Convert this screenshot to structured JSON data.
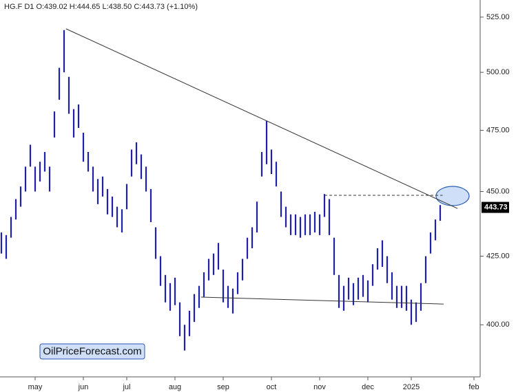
{
  "chart_data": {
    "type": "hlbar",
    "title": "HG.F  D1  O:439.02  H:444.65  L:438.50  C:443.73  (+1.10%)",
    "watermark": "OilPriceForecast.com",
    "color": "#1f1fa8",
    "log_scale": true,
    "ylim": [
      382,
      533
    ],
    "yticks": [
      {
        "value": 400,
        "label": "400.00"
      },
      {
        "value": 425,
        "label": "425.00"
      },
      {
        "value": 450,
        "label": "450.00"
      },
      {
        "value": 475,
        "label": "475.00"
      },
      {
        "value": 500,
        "label": "500.00"
      },
      {
        "value": 525,
        "label": "525.00"
      }
    ],
    "categories": [
      null,
      null,
      null,
      null,
      null,
      null,
      null,
      "may",
      null,
      null,
      null,
      null,
      null,
      null,
      null,
      null,
      null,
      "jun",
      null,
      null,
      null,
      null,
      null,
      null,
      null,
      null,
      "jul",
      null,
      null,
      null,
      null,
      null,
      null,
      null,
      null,
      null,
      "aug",
      null,
      null,
      null,
      null,
      null,
      null,
      null,
      null,
      null,
      "sep",
      null,
      null,
      null,
      null,
      null,
      null,
      null,
      null,
      null,
      "oct",
      null,
      null,
      null,
      null,
      null,
      null,
      null,
      null,
      null,
      "nov",
      null,
      null,
      null,
      null,
      null,
      null,
      null,
      null,
      null,
      "dec",
      null,
      null,
      null,
      null,
      null,
      null,
      null,
      null,
      "2025",
      null,
      null,
      null,
      null,
      null,
      null,
      null,
      null,
      null,
      null,
      null,
      null,
      "feb"
    ],
    "high": [
      434,
      433,
      440,
      447,
      452,
      460,
      469,
      460,
      462,
      466,
      460,
      483,
      502,
      519,
      498,
      484,
      486,
      474,
      466,
      460,
      455,
      456,
      451,
      448,
      444,
      443,
      453,
      467,
      470,
      465,
      460,
      451,
      436,
      425,
      418,
      415,
      417,
      408,
      400,
      405,
      411,
      414,
      419,
      424,
      426,
      430,
      420,
      414,
      413,
      419,
      424,
      432,
      436,
      446,
      466,
      479,
      467,
      462,
      450,
      444,
      441,
      441,
      440,
      441,
      441,
      442,
      441,
      449,
      447,
      432,
      418,
      414,
      417,
      415,
      417,
      418,
      416,
      422,
      428,
      431,
      425,
      419,
      414,
      414,
      414,
      409,
      408,
      415,
      425,
      434,
      439,
      444.65,
      null,
      null,
      null,
      null,
      null,
      null,
      null
    ],
    "low": [
      426,
      424,
      432,
      439,
      444,
      450,
      460,
      450,
      454,
      458,
      450,
      472,
      488,
      500,
      482,
      472,
      476,
      462,
      458,
      450,
      445,
      448,
      441,
      440,
      436,
      434,
      443,
      456,
      461,
      455,
      450,
      438,
      424,
      414,
      408,
      405,
      407,
      396,
      391,
      396,
      401,
      406,
      410,
      416,
      418,
      420,
      408,
      406,
      404,
      411,
      416,
      424,
      428,
      434,
      456,
      461,
      457,
      452,
      440,
      436,
      433,
      433,
      432,
      433,
      433,
      434,
      433,
      440,
      433,
      418,
      406,
      405,
      409,
      407,
      409,
      410,
      408,
      414,
      420,
      421,
      415,
      409,
      406,
      406,
      405,
      400,
      401,
      405,
      415,
      426,
      431,
      438.5,
      null,
      null,
      null,
      null,
      null,
      null,
      null
    ],
    "last_price": 443.73,
    "trendlines": [
      {
        "x": [
          13.4,
          94.6
        ],
        "y": [
          519.6,
          443.3
        ],
        "dashed": false
      },
      {
        "x": [
          41.4,
          91.7
        ],
        "y": [
          409.9,
          407.4
        ],
        "dashed": false
      },
      {
        "x": [
          67,
          91.5
        ],
        "y": [
          448.5,
          448.5
        ],
        "dashed": true
      }
    ]
  }
}
